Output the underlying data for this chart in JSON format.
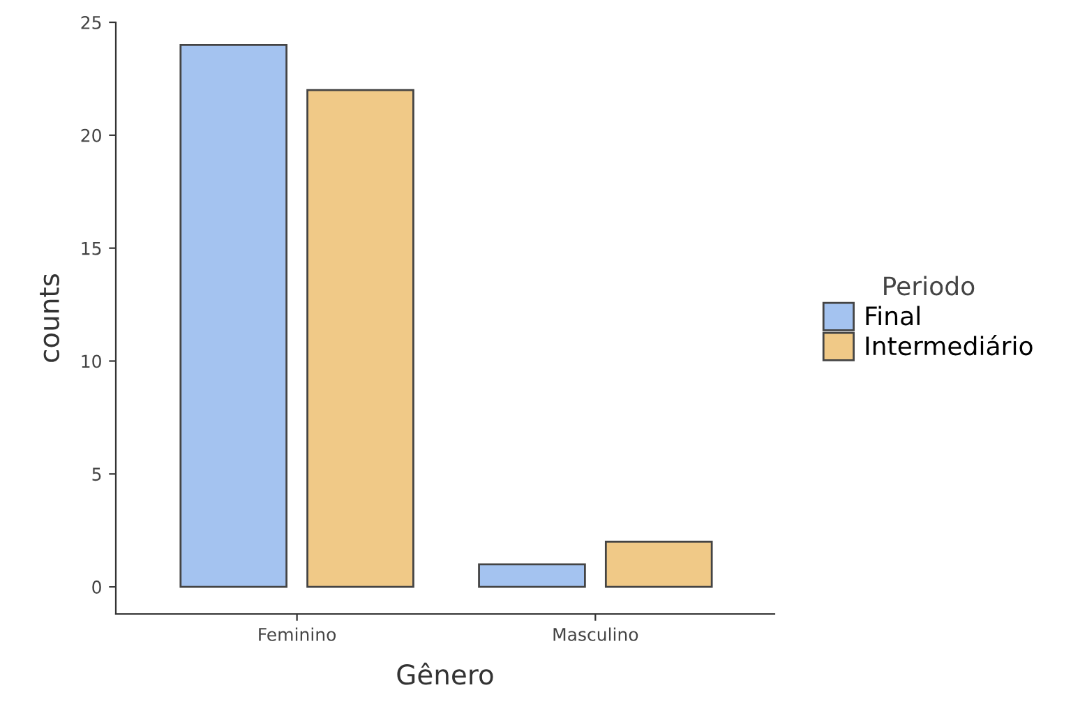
{
  "chart_data": {
    "type": "bar",
    "xlabel": "Gênero",
    "ylabel": "counts",
    "legend_title": "Periodo",
    "categories": [
      "Feminino",
      "Masculino"
    ],
    "series": [
      {
        "name": "Final",
        "color": "#a4c3f0",
        "values": [
          24,
          1
        ]
      },
      {
        "name": "Intermediário",
        "color": "#f0c987",
        "values": [
          22,
          2
        ]
      }
    ],
    "ylim": [
      -1.2,
      25
    ],
    "yticks": [
      0,
      5,
      10,
      15,
      20,
      25
    ],
    "grid": false,
    "legend": "right"
  }
}
